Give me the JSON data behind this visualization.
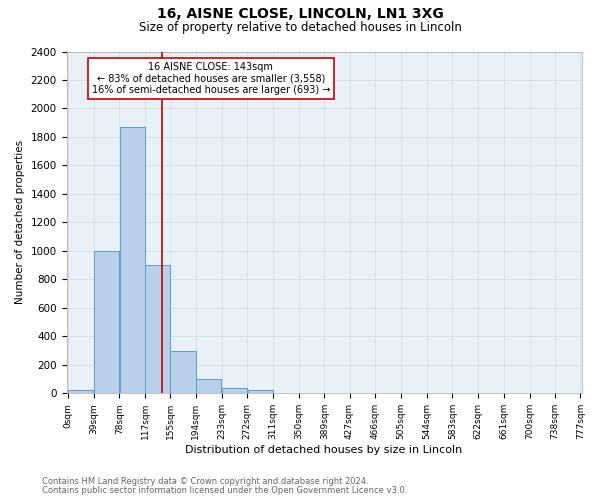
{
  "title": "16, AISNE CLOSE, LINCOLN, LN1 3XG",
  "subtitle": "Size of property relative to detached houses in Lincoln",
  "xlabel": "Distribution of detached houses by size in Lincoln",
  "ylabel": "Number of detached properties",
  "footnote1": "Contains HM Land Registry data © Crown copyright and database right 2024.",
  "footnote2": "Contains public sector information licensed under the Open Government Licence v3.0.",
  "property_label": "16 AISNE CLOSE: 143sqm",
  "annotation_line1": "← 83% of detached houses are smaller (3,558)",
  "annotation_line2": "16% of semi-detached houses are larger (693) →",
  "bin_edges": [
    0,
    39,
    78,
    117,
    155,
    194,
    233,
    272,
    311,
    350,
    389,
    427,
    466,
    505,
    544,
    583,
    622,
    661,
    700,
    738,
    777
  ],
  "bin_counts": [
    20,
    1000,
    1870,
    900,
    300,
    100,
    40,
    20,
    5,
    0,
    0,
    0,
    0,
    0,
    0,
    0,
    0,
    0,
    0,
    0
  ],
  "bar_color": "#b8d0e8",
  "bar_edge_color": "#5b9bd5",
  "vline_x": 143,
  "vline_color": "#cc0000",
  "ylim": [
    0,
    2400
  ],
  "yticks": [
    0,
    200,
    400,
    600,
    800,
    1000,
    1200,
    1400,
    1600,
    1800,
    2000,
    2200,
    2400
  ],
  "annotation_box_edge_color": "#cc0000",
  "annotation_box_face_color": "#ffffff",
  "grid_color": "#d0d8e0",
  "outer_bg_color": "#ffffff",
  "plot_bg_color": "#e8f0f8",
  "footnote_color": "#666666",
  "title_fontsize": 10,
  "subtitle_fontsize": 8.5,
  "ylabel_fontsize": 7.5,
  "xlabel_fontsize": 8,
  "ytick_fontsize": 7.5,
  "xtick_fontsize": 6.5,
  "annotation_fontsize": 7,
  "footnote_fontsize": 6
}
